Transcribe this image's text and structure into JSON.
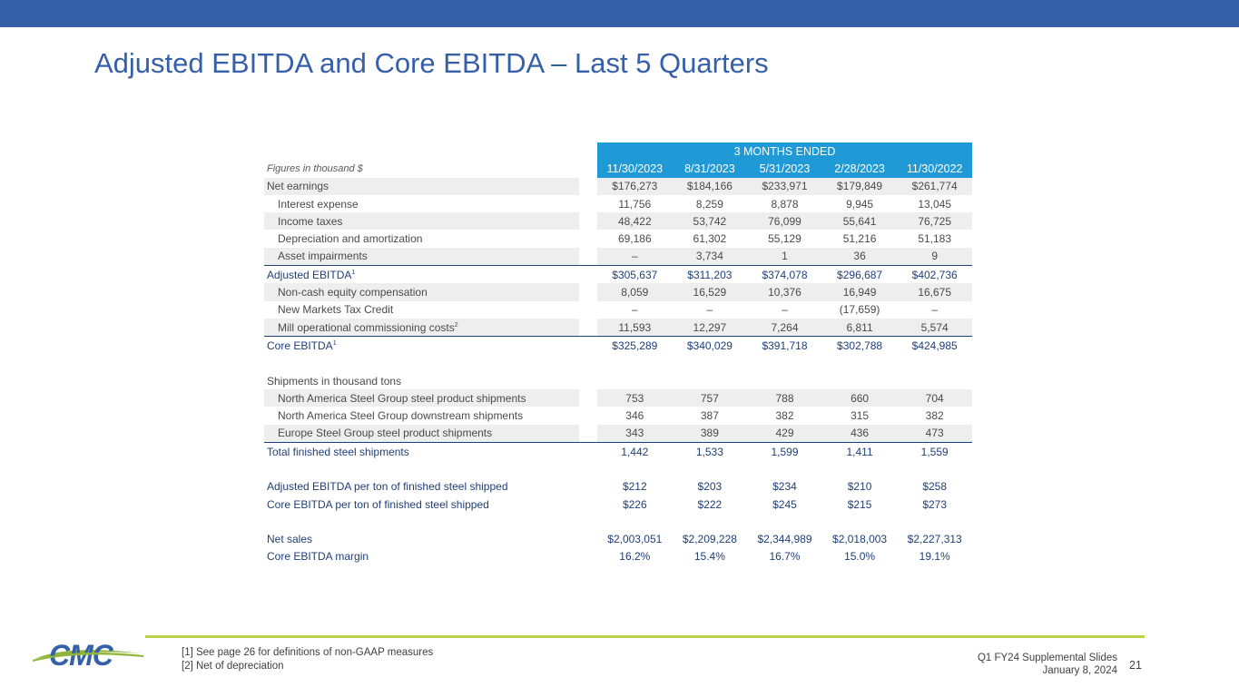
{
  "title": "Adjusted EBITDA and Core EBITDA – Last 5 Quarters",
  "table": {
    "period_header": "3 MONTHS ENDED",
    "figures_label": "Figures in thousand $",
    "columns": [
      "11/30/2023",
      "8/31/2023",
      "5/31/2023",
      "2/28/2023",
      "11/30/2022"
    ],
    "rows": {
      "net_earnings": {
        "label": "Net earnings",
        "values": [
          "$176,273",
          "$184,166",
          "$233,971",
          "$179,849",
          "$261,774"
        ]
      },
      "interest_expense": {
        "label": "Interest expense",
        "values": [
          "11,756",
          "8,259",
          "8,878",
          "9,945",
          "13,045"
        ]
      },
      "income_taxes": {
        "label": "Income taxes",
        "values": [
          "48,422",
          "53,742",
          "76,099",
          "55,641",
          "76,725"
        ]
      },
      "depreciation": {
        "label": "Depreciation and amortization",
        "values": [
          "69,186",
          "61,302",
          "55,129",
          "51,216",
          "51,183"
        ]
      },
      "asset_impairments": {
        "label": "Asset impairments",
        "values": [
          "–",
          "3,734",
          "1",
          "36",
          "9"
        ]
      },
      "adjusted_ebitda": {
        "label": "Adjusted EBITDA",
        "note": "1",
        "values": [
          "$305,637",
          "$311,203",
          "$374,078",
          "$296,687",
          "$402,736"
        ]
      },
      "equity_comp": {
        "label": "Non-cash equity compensation",
        "values": [
          "8,059",
          "16,529",
          "10,376",
          "16,949",
          "16,675"
        ]
      },
      "new_markets": {
        "label": "New Markets Tax Credit",
        "values": [
          "–",
          "–",
          "–",
          "(17,659)",
          "–"
        ]
      },
      "mill_costs": {
        "label": "Mill operational commissioning costs",
        "note": "2",
        "values": [
          "11,593",
          "12,297",
          "7,264",
          "6,811",
          "5,574"
        ]
      },
      "core_ebitda": {
        "label": "Core EBITDA",
        "note": "1",
        "values": [
          "$325,289",
          "$340,029",
          "$391,718",
          "$302,788",
          "$424,985"
        ]
      },
      "shipments_header": {
        "label": "Shipments in thousand tons"
      },
      "na_steel": {
        "label": "North America Steel Group steel product shipments",
        "values": [
          "753",
          "757",
          "788",
          "660",
          "704"
        ]
      },
      "na_downstream": {
        "label": "North America Steel Group downstream shipments",
        "values": [
          "346",
          "387",
          "382",
          "315",
          "382"
        ]
      },
      "europe_steel": {
        "label": "Europe Steel Group steel product shipments",
        "values": [
          "343",
          "389",
          "429",
          "436",
          "473"
        ]
      },
      "total_shipments": {
        "label": "Total finished steel shipments",
        "values": [
          "1,442",
          "1,533",
          "1,599",
          "1,411",
          "1,559"
        ]
      },
      "adj_per_ton": {
        "label": "Adjusted EBITDA per ton of finished steel shipped",
        "values": [
          "$212",
          "$203",
          "$234",
          "$210",
          "$258"
        ]
      },
      "core_per_ton": {
        "label": "Core EBITDA per ton of finished steel shipped",
        "values": [
          "$226",
          "$222",
          "$245",
          "$215",
          "$273"
        ]
      },
      "net_sales": {
        "label": "Net sales",
        "values": [
          "$2,003,051",
          "$2,209,228",
          "$2,344,989",
          "$2,018,003",
          "$2,227,313"
        ]
      },
      "core_margin": {
        "label": "Core EBITDA margin",
        "values": [
          "16.2%",
          "15.4%",
          "16.7%",
          "15.0%",
          "19.1%"
        ]
      }
    }
  },
  "footnotes": [
    "[1] See page 26 for definitions of non-GAAP measures",
    "[2] Net of depreciation"
  ],
  "footer": {
    "deck_title": "Q1 FY24 Supplemental Slides",
    "date": "January 8, 2024",
    "page_number": "21"
  },
  "logo": {
    "text": "CMC",
    "icon": "cmc-logo-icon"
  },
  "colors": {
    "brand_blue": "#3560a8",
    "header_blue": "#1f9ad6",
    "accent_green": "#bcd14a",
    "total_navy": "#1f3f77",
    "row_shade": "#eeeeee"
  }
}
